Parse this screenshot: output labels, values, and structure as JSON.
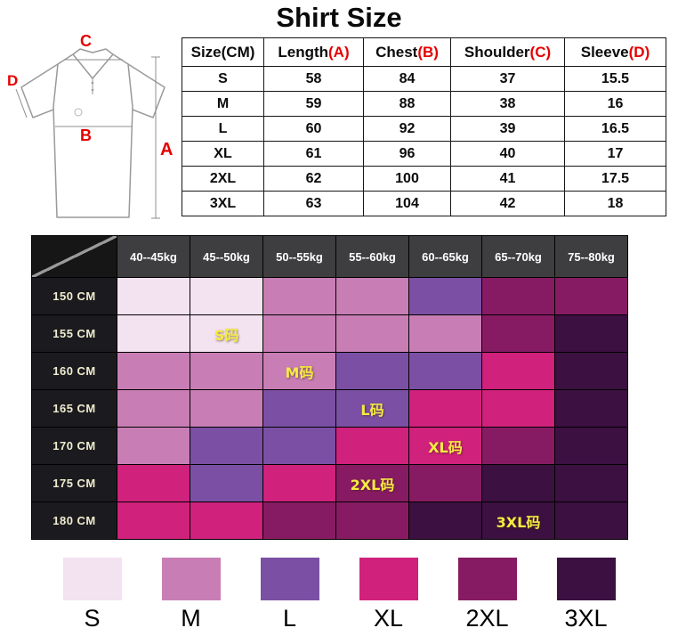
{
  "title": "Shirt Size",
  "accent_red": "#e60000",
  "diagram": {
    "labels": {
      "a": "A",
      "b": "B",
      "c": "C",
      "d": "D"
    }
  },
  "chart_data": [
    {
      "type": "table",
      "title": "Shirt Size",
      "columns": [
        "Size(CM)",
        "Length(A)",
        "Chest(B)",
        "Shoulder(C)",
        "Sleeve(D)"
      ],
      "rows": [
        [
          "S",
          58,
          84,
          37,
          15.5
        ],
        [
          "M",
          59,
          88,
          38,
          16
        ],
        [
          "L",
          60,
          92,
          39,
          16.5
        ],
        [
          "XL",
          61,
          96,
          40,
          17
        ],
        [
          "2XL",
          62,
          100,
          41,
          17.5
        ],
        [
          "3XL",
          63,
          104,
          42,
          18
        ]
      ]
    },
    {
      "type": "heatmap",
      "x_labels": [
        "40--45kg",
        "45--50kg",
        "50--55kg",
        "55--60kg",
        "60--65kg",
        "65--70kg",
        "75--80kg"
      ],
      "y_labels": [
        "150 CM",
        "155 CM",
        "160 CM",
        "165 CM",
        "170 CM",
        "175 CM",
        "180 CM"
      ],
      "values": [
        [
          "S",
          "S",
          "M",
          "M",
          "L",
          "2XL",
          "2XL"
        ],
        [
          "S",
          "S",
          "M",
          "M",
          "M",
          "2XL",
          "3XL"
        ],
        [
          "M",
          "M",
          "M",
          "L",
          "L",
          "XL",
          "3XL"
        ],
        [
          "M",
          "M",
          "L",
          "L",
          "XL",
          "XL",
          "3XL"
        ],
        [
          "M",
          "L",
          "L",
          "XL",
          "XL",
          "2XL",
          "3XL"
        ],
        [
          "XL",
          "L",
          "XL",
          "2XL",
          "2XL",
          "3XL",
          "3XL"
        ],
        [
          "XL",
          "XL",
          "2XL",
          "2XL",
          "3XL",
          "3XL",
          "3XL"
        ]
      ],
      "cell_labels": [
        {
          "row": 1,
          "col": 1,
          "text": "S码"
        },
        {
          "row": 2,
          "col": 2,
          "text": "M码"
        },
        {
          "row": 3,
          "col": 3,
          "text": "L码"
        },
        {
          "row": 4,
          "col": 4,
          "text": "XL码"
        },
        {
          "row": 5,
          "col": 3,
          "text": "2XL码"
        },
        {
          "row": 6,
          "col": 5,
          "text": "3XL码"
        }
      ]
    }
  ],
  "size_colors": {
    "S": "#f3e2ef",
    "M": "#c87eb5",
    "L": "#7b50a4",
    "XL": "#d0217c",
    "2XL": "#871b63",
    "3XL": "#3c1040"
  },
  "matrix_style": {
    "header_bg": "#3e3e40",
    "header_text": "#ffffff",
    "row_header_bg": "#1b1b1f",
    "row_header_text": "#efeccf",
    "cell_label_color": "#f6ea43",
    "grid_line": "#000000"
  },
  "legend": {
    "items": [
      {
        "label": "S",
        "size_key": "S"
      },
      {
        "label": "M",
        "size_key": "M"
      },
      {
        "label": "L",
        "size_key": "L"
      },
      {
        "label": "XL",
        "size_key": "XL"
      },
      {
        "label": "2XL",
        "size_key": "2XL"
      },
      {
        "label": "3XL",
        "size_key": "3XL"
      }
    ]
  }
}
